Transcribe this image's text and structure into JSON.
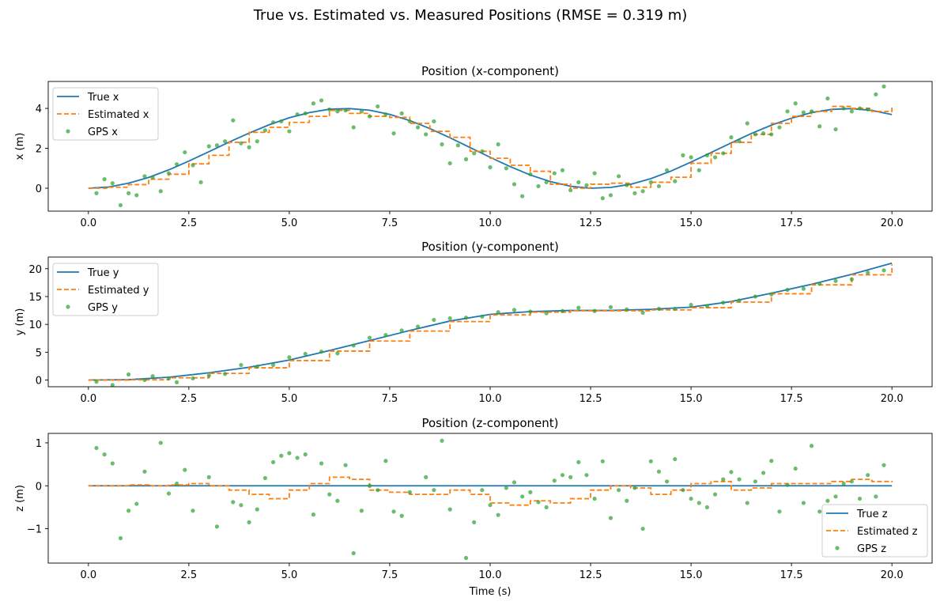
{
  "figure_title": "True vs. Estimated vs. Measured Positions (RMSE = 0.319 m)",
  "colors": {
    "true": "#1f77b4",
    "estimated": "#ff7f0e",
    "gps": "#2ca02c"
  },
  "chart_data": [
    {
      "type": "line",
      "title": "Position (x-component)",
      "xlabel": "",
      "ylabel": "x (m)",
      "xlim": [
        -1.0,
        21.0
      ],
      "ylim": [
        -1.15,
        5.35
      ],
      "xticks": [
        0.0,
        2.5,
        5.0,
        7.5,
        10.0,
        12.5,
        15.0,
        17.5,
        20.0
      ],
      "xtick_labels": [
        "0.0",
        "2.5",
        "5.0",
        "7.5",
        "10.0",
        "12.5",
        "15.0",
        "17.5",
        "20.0"
      ],
      "yticks": [
        0,
        2,
        4
      ],
      "ytick_labels": [
        "0",
        "2",
        "4"
      ],
      "legend": "upper-left",
      "series": [
        {
          "name": "True x",
          "style": "solid",
          "x": [
            0,
            0.5,
            1,
            1.5,
            2,
            2.5,
            3,
            3.5,
            4,
            4.5,
            5,
            5.5,
            6,
            6.5,
            7,
            7.5,
            8,
            8.5,
            9,
            9.5,
            10,
            10.5,
            11,
            11.5,
            12,
            12.5,
            13,
            13.5,
            14,
            14.5,
            15,
            15.5,
            16,
            16.5,
            17,
            17.5,
            18,
            18.5,
            19,
            19.5,
            20
          ],
          "y": [
            0,
            0.06,
            0.25,
            0.54,
            0.92,
            1.36,
            1.83,
            2.31,
            2.76,
            3.18,
            3.53,
            3.79,
            3.96,
            3.99,
            3.91,
            3.7,
            3.39,
            2.99,
            2.53,
            2.04,
            1.55,
            1.08,
            0.66,
            0.33,
            0.1,
            0.0,
            0.04,
            0.2,
            0.48,
            0.86,
            1.31,
            1.79,
            2.27,
            2.74,
            3.16,
            3.51,
            3.79,
            3.95,
            3.99,
            3.9,
            3.69
          ]
        },
        {
          "name": "Estimated x",
          "style": "dashed",
          "x": [
            0,
            0.5,
            1,
            1.5,
            2,
            2.5,
            3,
            3.5,
            4,
            4.5,
            5,
            5.5,
            6,
            6.5,
            7,
            7.5,
            8,
            8.5,
            9,
            9.5,
            10,
            10.5,
            11,
            11.5,
            12,
            12.5,
            13,
            13.5,
            14,
            14.5,
            15,
            15.5,
            16,
            16.5,
            17,
            17.5,
            18,
            18.5,
            19,
            19.5,
            20
          ],
          "y": [
            0,
            0.05,
            0.18,
            0.45,
            0.7,
            1.22,
            1.65,
            2.3,
            2.8,
            3.05,
            3.3,
            3.6,
            3.9,
            3.75,
            3.6,
            3.55,
            3.25,
            2.85,
            2.55,
            1.85,
            1.5,
            1.15,
            0.85,
            0.2,
            0.0,
            0.2,
            0.25,
            0.05,
            0.3,
            0.55,
            1.25,
            1.75,
            2.3,
            2.7,
            3.25,
            3.6,
            3.85,
            4.1,
            4.0,
            3.85,
            4.15
          ]
        },
        {
          "name": "GPS x",
          "style": "scatter",
          "x": [
            0.2,
            0.4,
            0.6,
            0.8,
            1.0,
            1.2,
            1.4,
            1.6,
            1.8,
            2.0,
            2.2,
            2.4,
            2.6,
            2.8,
            3.0,
            3.2,
            3.4,
            3.6,
            3.8,
            4.0,
            4.2,
            4.4,
            4.6,
            4.8,
            5.0,
            5.2,
            5.4,
            5.6,
            5.8,
            6.0,
            6.2,
            6.4,
            6.6,
            6.8,
            7.0,
            7.2,
            7.4,
            7.6,
            7.8,
            8.0,
            8.2,
            8.4,
            8.6,
            8.8,
            9.0,
            9.2,
            9.4,
            9.6,
            9.8,
            10.0,
            10.2,
            10.4,
            10.6,
            10.8,
            11.0,
            11.2,
            11.4,
            11.6,
            11.8,
            12.0,
            12.2,
            12.4,
            12.6,
            12.8,
            13.0,
            13.2,
            13.4,
            13.6,
            13.8,
            14.0,
            14.2,
            14.4,
            14.6,
            14.8,
            15.0,
            15.2,
            15.4,
            15.6,
            15.8,
            16.0,
            16.2,
            16.4,
            16.6,
            16.8,
            17.0,
            17.2,
            17.4,
            17.6,
            17.8,
            18.0,
            18.2,
            18.4,
            18.6,
            18.8,
            19.0,
            19.2,
            19.4,
            19.6,
            19.8
          ],
          "y": [
            -0.25,
            0.45,
            0.25,
            -0.85,
            -0.25,
            -0.35,
            0.6,
            0.55,
            -0.15,
            0.75,
            1.2,
            1.8,
            1.15,
            0.3,
            2.1,
            2.15,
            2.35,
            3.4,
            2.25,
            2.05,
            2.35,
            2.9,
            3.3,
            3.35,
            2.85,
            3.7,
            3.75,
            4.25,
            4.4,
            3.95,
            3.85,
            3.9,
            3.05,
            3.85,
            3.6,
            4.1,
            3.7,
            2.75,
            3.75,
            3.35,
            3.05,
            2.7,
            3.35,
            2.2,
            1.25,
            2.15,
            1.45,
            1.75,
            1.85,
            1.05,
            2.2,
            1.0,
            0.2,
            -0.4,
            0.7,
            0.1,
            0.3,
            0.75,
            0.9,
            -0.1,
            0.3,
            0.15,
            0.75,
            -0.5,
            -0.35,
            0.6,
            0.15,
            -0.25,
            -0.15,
            0.3,
            0.1,
            0.9,
            0.35,
            1.65,
            1.55,
            0.9,
            1.65,
            1.55,
            1.75,
            2.55,
            2.35,
            3.25,
            2.7,
            2.75,
            2.7,
            3.05,
            3.85,
            4.25,
            3.8,
            3.85,
            3.1,
            4.5,
            2.95,
            4.0,
            3.85,
            4.0,
            3.95,
            4.7,
            5.1
          ]
        }
      ]
    },
    {
      "type": "line",
      "title": "Position (y-component)",
      "xlabel": "",
      "ylabel": "y (m)",
      "xlim": [
        -1.0,
        21.0
      ],
      "ylim": [
        -1.2,
        22.1
      ],
      "xticks": [
        0.0,
        2.5,
        5.0,
        7.5,
        10.0,
        12.5,
        15.0,
        17.5,
        20.0
      ],
      "xtick_labels": [
        "0.0",
        "2.5",
        "5.0",
        "7.5",
        "10.0",
        "12.5",
        "15.0",
        "17.5",
        "20.0"
      ],
      "yticks": [
        0,
        5,
        10,
        15,
        20
      ],
      "ytick_labels": [
        "0",
        "5",
        "10",
        "15",
        "20"
      ],
      "legend": "upper-left",
      "series": [
        {
          "name": "True y",
          "style": "solid",
          "x": [
            0,
            1,
            2,
            3,
            4,
            5,
            6,
            7,
            8,
            9,
            10,
            11,
            12,
            13,
            14,
            15,
            16,
            17,
            18,
            19,
            20
          ],
          "y": [
            0,
            0.07,
            0.5,
            1.3,
            2.3,
            3.6,
            5.3,
            7.1,
            8.9,
            10.6,
            11.8,
            12.3,
            12.5,
            12.5,
            12.7,
            13.1,
            14.1,
            15.6,
            17.2,
            19.0,
            21.0
          ]
        },
        {
          "name": "Estimated y",
          "style": "dashed",
          "x": [
            0,
            1,
            2,
            3,
            4,
            5,
            6,
            7,
            8,
            9,
            10,
            11,
            12,
            13,
            14,
            15,
            16,
            17,
            18,
            19,
            20
          ],
          "y": [
            0,
            0.05,
            0.4,
            1.2,
            2.2,
            3.5,
            5.2,
            7.0,
            8.8,
            10.5,
            11.7,
            12.2,
            12.45,
            12.45,
            12.6,
            13.0,
            14.0,
            15.5,
            17.1,
            18.9,
            20.8
          ]
        },
        {
          "name": "GPS y",
          "style": "scatter",
          "x": [
            0.2,
            0.6,
            1.0,
            1.4,
            1.6,
            2.0,
            2.2,
            2.6,
            3.0,
            3.4,
            3.8,
            4.2,
            4.6,
            5.0,
            5.4,
            5.8,
            6.2,
            6.6,
            7.0,
            7.4,
            7.8,
            8.2,
            8.6,
            9.0,
            9.4,
            9.8,
            10.2,
            10.6,
            11.0,
            11.4,
            11.8,
            12.2,
            12.6,
            13.0,
            13.4,
            13.8,
            14.2,
            14.6,
            15.0,
            15.4,
            15.8,
            16.2,
            16.6,
            17.0,
            17.4,
            17.8,
            18.2,
            18.6,
            19.0,
            19.4,
            19.8
          ],
          "y": [
            -0.3,
            -0.9,
            1.0,
            0.0,
            0.7,
            0.3,
            -0.4,
            0.3,
            0.8,
            1.1,
            2.7,
            2.4,
            2.7,
            4.1,
            4.7,
            5.1,
            4.8,
            6.2,
            7.6,
            8.1,
            8.9,
            9.6,
            10.8,
            11.1,
            11.2,
            11.4,
            12.2,
            12.6,
            12.3,
            12.0,
            12.4,
            13.0,
            12.4,
            13.1,
            12.7,
            12.1,
            12.8,
            12.8,
            13.5,
            13.3,
            13.9,
            14.3,
            15.0,
            15.4,
            16.2,
            16.4,
            17.3,
            17.8,
            18.1,
            19.3,
            19.7
          ]
        }
      ]
    },
    {
      "type": "line",
      "title": "Position (z-component)",
      "xlabel": "Time (s)",
      "ylabel": "z (m)",
      "xlim": [
        -1.0,
        21.0
      ],
      "ylim": [
        -1.8,
        1.22
      ],
      "xticks": [
        0.0,
        2.5,
        5.0,
        7.5,
        10.0,
        12.5,
        15.0,
        17.5,
        20.0
      ],
      "xtick_labels": [
        "0.0",
        "2.5",
        "5.0",
        "7.5",
        "10.0",
        "12.5",
        "15.0",
        "17.5",
        "20.0"
      ],
      "yticks": [
        -1,
        0,
        1
      ],
      "ytick_labels": [
        "−1",
        "0",
        "1"
      ],
      "legend": "lower-right",
      "series": [
        {
          "name": "True z",
          "style": "solid",
          "x": [
            0,
            20
          ],
          "y": [
            0,
            0
          ]
        },
        {
          "name": "Estimated z",
          "style": "dashed",
          "x": [
            0,
            0.5,
            1,
            1.5,
            2,
            2.5,
            3,
            3.5,
            4,
            4.5,
            5,
            5.5,
            6,
            6.5,
            7,
            7.5,
            8,
            8.5,
            9,
            9.5,
            10,
            10.5,
            11,
            11.5,
            12,
            12.5,
            13,
            13.5,
            14,
            14.5,
            15,
            15.5,
            16,
            16.5,
            17,
            17.5,
            18,
            18.5,
            19,
            19.5,
            20
          ],
          "y": [
            0,
            0.0,
            0.02,
            0.0,
            0.02,
            0.05,
            0.0,
            -0.1,
            -0.2,
            -0.3,
            -0.1,
            0.05,
            0.2,
            0.15,
            -0.1,
            -0.15,
            -0.2,
            -0.2,
            -0.1,
            -0.2,
            -0.4,
            -0.45,
            -0.35,
            -0.4,
            -0.3,
            -0.1,
            0.0,
            -0.05,
            -0.2,
            -0.1,
            0.05,
            0.1,
            -0.1,
            -0.05,
            0.05,
            0.05,
            0.05,
            0.1,
            0.15,
            0.1,
            0.08
          ]
        },
        {
          "name": "GPS z",
          "style": "scatter",
          "x": [
            0.2,
            0.4,
            0.6,
            0.8,
            1.0,
            1.2,
            1.4,
            1.8,
            2.0,
            2.2,
            2.4,
            2.6,
            3.0,
            3.2,
            3.6,
            3.8,
            4.0,
            4.2,
            4.4,
            4.6,
            4.8,
            5.0,
            5.2,
            5.4,
            5.6,
            5.8,
            6.0,
            6.2,
            6.4,
            6.6,
            6.8,
            7.0,
            7.2,
            7.4,
            7.6,
            7.8,
            8.0,
            8.4,
            8.6,
            8.8,
            9.0,
            9.4,
            9.6,
            9.8,
            10.0,
            10.2,
            10.4,
            10.6,
            10.8,
            11.0,
            11.2,
            11.4,
            11.6,
            11.8,
            12.0,
            12.2,
            12.4,
            12.6,
            12.8,
            13.0,
            13.2,
            13.4,
            13.6,
            13.8,
            14.0,
            14.2,
            14.4,
            14.6,
            14.8,
            15.0,
            15.2,
            15.4,
            15.6,
            15.8,
            16.0,
            16.2,
            16.4,
            16.6,
            16.8,
            17.0,
            17.2,
            17.4,
            17.6,
            17.8,
            18.0,
            18.2,
            18.4,
            18.6,
            18.8,
            19.0,
            19.2,
            19.4,
            19.6,
            19.8
          ],
          "y": [
            0.88,
            0.73,
            0.52,
            -1.22,
            -0.58,
            -0.42,
            0.33,
            1.0,
            -0.18,
            0.05,
            0.37,
            -0.58,
            0.2,
            -0.95,
            -0.38,
            -0.45,
            -0.85,
            -0.55,
            0.18,
            0.55,
            0.7,
            0.76,
            0.65,
            0.73,
            -0.67,
            0.52,
            -0.2,
            -0.35,
            0.48,
            -1.57,
            -0.58,
            0.0,
            -0.1,
            0.58,
            -0.6,
            -0.7,
            -0.15,
            0.2,
            -0.1,
            1.05,
            -0.55,
            -1.68,
            -0.85,
            -0.1,
            -0.45,
            -0.68,
            -0.05,
            0.08,
            -0.25,
            -0.15,
            -0.38,
            -0.5,
            0.12,
            0.25,
            0.2,
            0.55,
            0.25,
            -0.3,
            0.57,
            -0.75,
            -0.1,
            -0.35,
            -0.05,
            -1.0,
            0.57,
            0.33,
            0.1,
            0.62,
            -0.1,
            -0.3,
            -0.4,
            -0.5,
            -0.2,
            0.15,
            0.32,
            0.15,
            -0.4,
            0.1,
            0.3,
            0.58,
            -0.6,
            0.02,
            0.4,
            -0.4,
            0.93,
            -0.6,
            -0.35,
            -0.25,
            0.05,
            0.1,
            -0.3,
            0.25,
            -0.25,
            0.48
          ]
        }
      ]
    }
  ]
}
